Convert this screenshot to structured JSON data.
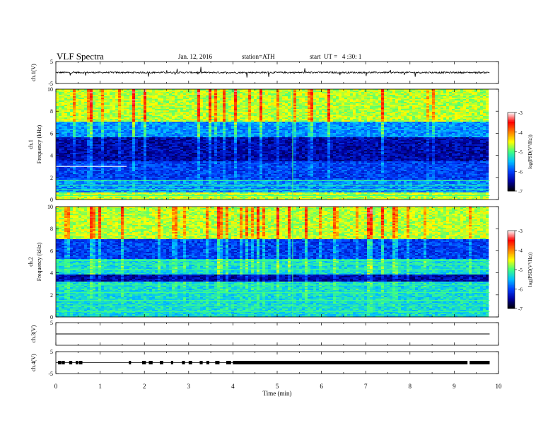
{
  "header": {
    "title": "VLF Spectra",
    "date": "Jan. 12, 2016",
    "station": "station=ATH",
    "start": "start  UT =   4 :30: 1"
  },
  "chart_data": {
    "type": "heatmap",
    "x": {
      "label": "Time (min)",
      "range": [
        0,
        10
      ],
      "ticks": [
        0,
        1,
        2,
        3,
        4,
        5,
        6,
        7,
        8,
        9,
        10
      ],
      "data_end": 9.8
    },
    "panels": [
      {
        "id": "ch1_waveform",
        "ylabel": "ch.1(V)",
        "ylim": [
          -5,
          5
        ],
        "ticks": [
          "5",
          "-5"
        ],
        "kind": "waveform",
        "baseline": 0,
        "noise_amp": 0.7
      },
      {
        "id": "ch1_spectrogram",
        "ylabel": "ch.1\nFrequency (kHz)",
        "ylim": [
          0,
          10
        ],
        "ticks": [
          0,
          2,
          4,
          6,
          8,
          10
        ],
        "kind": "spectrogram",
        "bands_khz": [
          {
            "range": [
              0.0,
              0.6
            ],
            "level": "high"
          },
          {
            "range": [
              0.6,
              1.8
            ],
            "level": "low-mid",
            "lines": [
              0.35,
              0.9,
              1.3,
              1.7
            ]
          },
          {
            "range": [
              1.8,
              3.5
            ],
            "level": "low"
          },
          {
            "range": [
              3.5,
              5.6
            ],
            "level": "very-low"
          },
          {
            "range": [
              5.6,
              7.0
            ],
            "level": "low-mid"
          },
          {
            "range": [
              7.0,
              10.0
            ],
            "level": "high"
          }
        ],
        "carrier_khz": 3.0,
        "carrier_end_min": 1.6
      },
      {
        "id": "ch2_spectrogram",
        "ylabel": "ch.2\nFrequency (kHz)",
        "ylim": [
          0,
          10
        ],
        "ticks": [
          0,
          2,
          4,
          6,
          8,
          10
        ],
        "kind": "spectrogram",
        "bands_khz": [
          {
            "range": [
              0.0,
              3.2
            ],
            "level": "mid",
            "lines": [
              0.5,
              1.0,
              1.5,
              2.2,
              2.9
            ]
          },
          {
            "range": [
              3.2,
              3.9
            ],
            "level": "very-low"
          },
          {
            "range": [
              3.9,
              5.2
            ],
            "level": "mid",
            "lines": [
              4.3,
              4.8,
              5.1
            ]
          },
          {
            "range": [
              5.2,
              7.0
            ],
            "level": "low"
          },
          {
            "range": [
              7.0,
              10.0
            ],
            "level": "high"
          }
        ]
      },
      {
        "id": "ch3_waveform",
        "ylabel": "ch.3(V)",
        "ylim": [
          -5,
          5
        ],
        "ticks": [
          "5"
        ],
        "kind": "flat",
        "baseline": 0
      },
      {
        "id": "ch4_waveform",
        "ylabel": "ch.4(V)",
        "ylim": [
          -5,
          5
        ],
        "ticks": [
          "5",
          "-5"
        ],
        "kind": "bursts",
        "baseline": 0,
        "bursts_min": [
          0.05,
          0.14,
          0.3,
          0.45,
          0.52,
          1.65,
          1.95,
          2.1,
          2.35,
          2.6,
          2.85,
          3.0,
          3.25,
          3.4,
          3.6,
          3.85,
          4.0,
          4.1
        ],
        "continuous_from_min": 4.15,
        "gap_min": 9.3
      }
    ],
    "colorbars": [
      {
        "label": "log(PSD(V²/Hz))",
        "range": [
          -7,
          -3
        ],
        "ticks": [
          "-3",
          "-4",
          "-5",
          "-6",
          "-7"
        ]
      },
      {
        "label": "log(PSD(V²/Hz))",
        "range": [
          -7,
          -3
        ],
        "ticks": [
          "-3",
          "-4",
          "-5",
          "-6",
          "-7"
        ]
      }
    ],
    "colormap": [
      "#000000",
      "#0000a0",
      "#0040ff",
      "#00c0ff",
      "#40ff80",
      "#ffff00",
      "#ff8000",
      "#ff0000",
      "#ffffff"
    ]
  }
}
